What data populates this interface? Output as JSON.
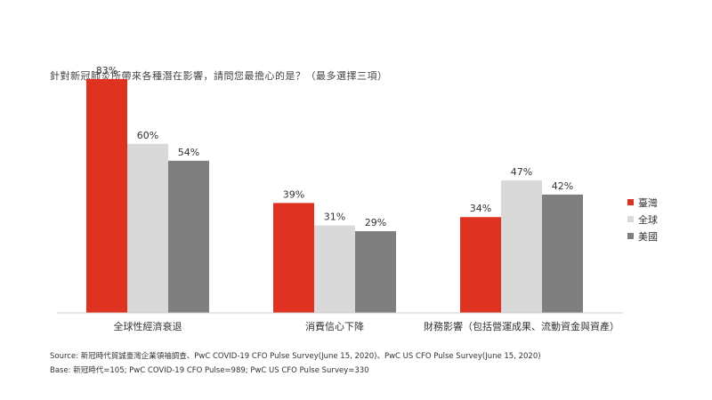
{
  "chart_data": {
    "type": "bar",
    "title": "針對新冠肺炎所帶來各種潛在影響，請問您最擔心的是？（最多選擇三項）",
    "categories": [
      "全球性經濟衰退",
      "消費信心下降",
      "財務影響（包括營運成果、流動資金與資產）"
    ],
    "series": [
      {
        "name": "臺灣",
        "color": "#e03220",
        "values": [
          83,
          39,
          34
        ],
        "labels": [
          "83%",
          "39%",
          "34%"
        ]
      },
      {
        "name": "全球",
        "color": "#d9d9d9",
        "values": [
          60,
          31,
          47
        ],
        "labels": [
          "60%",
          "31%",
          "47%"
        ]
      },
      {
        "name": "美國",
        "color": "#7f7f7f",
        "values": [
          54,
          29,
          42
        ],
        "labels": [
          "54%",
          "29%",
          "42%"
        ]
      }
    ],
    "ylim": [
      0,
      100
    ],
    "grid": false,
    "legend": "right"
  },
  "notes": {
    "source": "Source: 新冠時代貿誠臺灣企業領袖調查、PwC  COVID-19  CFO Pulse Survey(June  15, 2020)、PwC  US CFO Pulse Survey(June  15, 2020)",
    "base": "Base: 新冠時代=105;  PwC COVID-19  CFO Pulse=989;  PwC US CFO Pulse Survey=330"
  }
}
